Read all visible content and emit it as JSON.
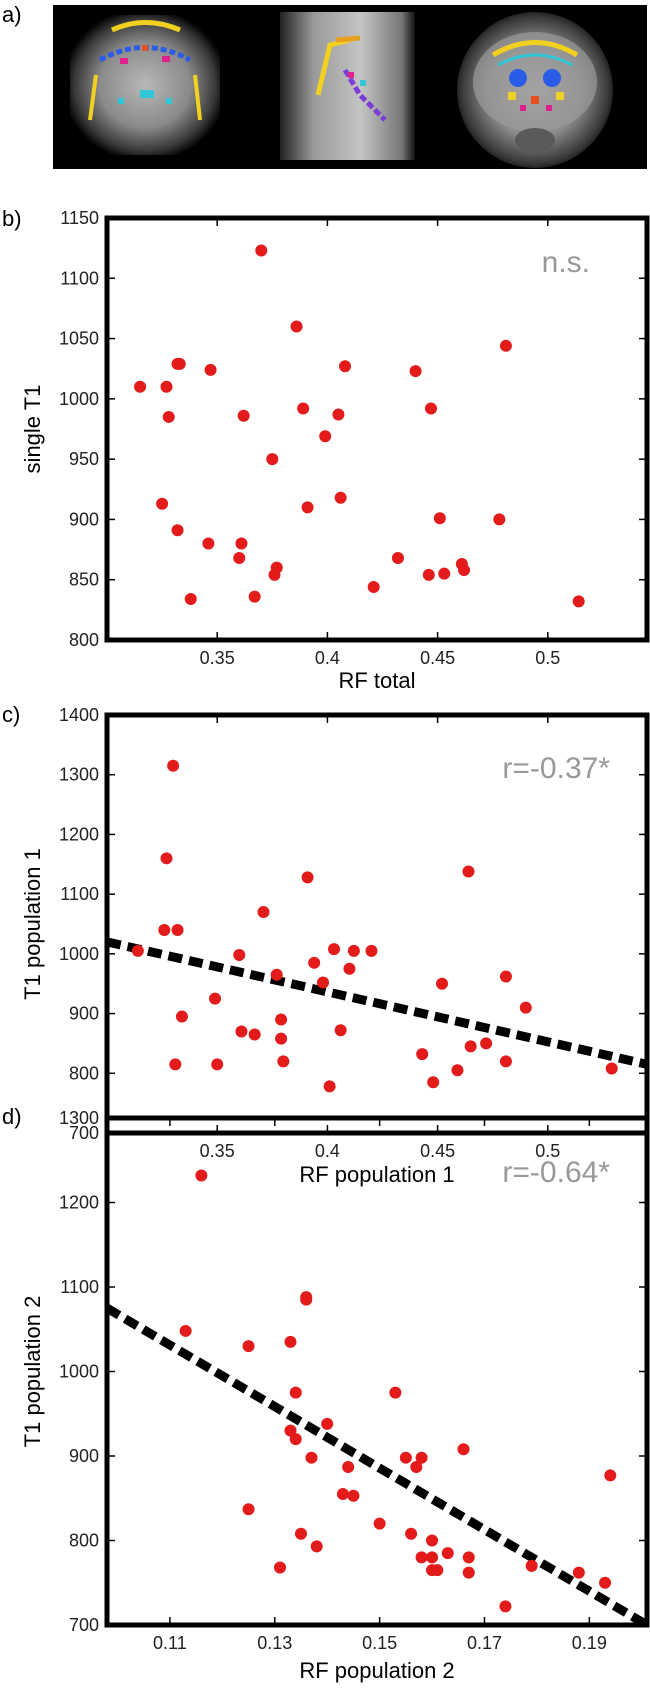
{
  "colors": {
    "point": "#e31b1b",
    "annotation": "#999999",
    "frame": "#000000",
    "fit_line": "#000000"
  },
  "panels": [
    {
      "label": "a)"
    },
    {
      "label": "b)"
    },
    {
      "label": "c)"
    },
    {
      "label": "d)"
    }
  ],
  "images": {
    "description_names": [
      "coronal-slice",
      "sagittal-slice",
      "axial-slice"
    ]
  },
  "chart_data": [
    {
      "type": "scatter",
      "xlabel": "RF total",
      "ylabel": "single T1",
      "annotation": "n.s.",
      "xlim": [
        0.3,
        0.545
      ],
      "ylim": [
        800,
        1150
      ],
      "xticks": [
        0.35,
        0.4,
        0.45,
        0.5
      ],
      "xtick_labels": [
        "0.35",
        "0.4",
        "0.45",
        "0.5"
      ],
      "yticks": [
        800,
        850,
        900,
        950,
        1000,
        1050,
        1100,
        1150
      ],
      "ytick_labels": [
        "800",
        "850",
        "900",
        "950",
        "1000",
        "1050",
        "1100",
        "1150"
      ],
      "fit": null,
      "x": [
        0.315,
        0.325,
        0.327,
        0.328,
        0.332,
        0.333,
        0.332,
        0.338,
        0.346,
        0.347,
        0.36,
        0.361,
        0.362,
        0.367,
        0.37,
        0.375,
        0.376,
        0.377,
        0.386,
        0.389,
        0.391,
        0.399,
        0.405,
        0.406,
        0.408,
        0.421,
        0.432,
        0.44,
        0.446,
        0.447,
        0.451,
        0.453,
        0.461,
        0.462,
        0.478,
        0.481,
        0.514
      ],
      "y": [
        1010,
        913,
        1010,
        985,
        1029,
        1029,
        891,
        834,
        880,
        1024,
        868,
        880,
        986,
        836,
        1123,
        950,
        854,
        860,
        1060,
        992,
        910,
        969,
        987,
        918,
        1027,
        844,
        868,
        1023,
        854,
        992,
        901,
        855,
        863,
        858,
        900,
        1044,
        832
      ]
    },
    {
      "type": "scatter",
      "xlabel": "RF population 1",
      "ylabel": "T1 population 1",
      "annotation": "r=-0.37*",
      "xlim": [
        0.3,
        0.545
      ],
      "ylim": [
        700,
        1400
      ],
      "xticks": [
        0.35,
        0.4,
        0.45,
        0.5
      ],
      "xtick_labels": [
        "0.35",
        "0.4",
        "0.45",
        "0.5"
      ],
      "yticks": [
        700,
        800,
        900,
        1000,
        1100,
        1200,
        1300,
        1400
      ],
      "ytick_labels": [
        "700",
        "800",
        "900",
        "1000",
        "1100",
        "1200",
        "1300",
        "1400"
      ],
      "fit": {
        "x": [
          0.3,
          0.545
        ],
        "y": [
          1020,
          815
        ]
      },
      "x": [
        0.314,
        0.326,
        0.327,
        0.33,
        0.331,
        0.332,
        0.334,
        0.349,
        0.35,
        0.36,
        0.361,
        0.367,
        0.371,
        0.377,
        0.379,
        0.379,
        0.38,
        0.391,
        0.394,
        0.398,
        0.401,
        0.403,
        0.406,
        0.41,
        0.412,
        0.42,
        0.443,
        0.448,
        0.452,
        0.459,
        0.465,
        0.472,
        0.481,
        0.481,
        0.464,
        0.49,
        0.529
      ],
      "y": [
        1005,
        1040,
        1160,
        1315,
        815,
        1040,
        895,
        925,
        815,
        998,
        870,
        865,
        1070,
        965,
        890,
        858,
        820,
        1128,
        985,
        952,
        778,
        1008,
        872,
        975,
        1005,
        1005,
        832,
        785,
        950,
        805,
        845,
        850,
        962,
        820,
        1138,
        910,
        808
      ]
    },
    {
      "type": "scatter",
      "xlabel": "RF population 2",
      "ylabel": "T1 population 2",
      "annotation": "r=-0.64*",
      "xlim": [
        0.098,
        0.201
      ],
      "ylim": [
        700,
        1300
      ],
      "xticks": [
        0.11,
        0.13,
        0.15,
        0.17,
        0.19
      ],
      "xtick_labels": [
        "0.11",
        "0.13",
        "0.15",
        "0.17",
        "0.19"
      ],
      "yticks": [
        700,
        800,
        900,
        1000,
        1100,
        1200,
        1300
      ],
      "ytick_labels": [
        "700",
        "800",
        "900",
        "1000",
        "1100",
        "1200",
        "1300"
      ],
      "fit": {
        "x": [
          0.098,
          0.201
        ],
        "y": [
          1075,
          700
        ]
      },
      "x": [
        0.113,
        0.116,
        0.125,
        0.125,
        0.131,
        0.133,
        0.133,
        0.134,
        0.134,
        0.135,
        0.136,
        0.136,
        0.137,
        0.138,
        0.14,
        0.143,
        0.144,
        0.145,
        0.15,
        0.153,
        0.155,
        0.156,
        0.157,
        0.158,
        0.158,
        0.16,
        0.16,
        0.16,
        0.161,
        0.163,
        0.166,
        0.167,
        0.167,
        0.174,
        0.179,
        0.188,
        0.193,
        0.194
      ],
      "y": [
        1048,
        1232,
        1030,
        837,
        768,
        1035,
        930,
        975,
        920,
        808,
        1085,
        1088,
        898,
        793,
        938,
        855,
        887,
        853,
        820,
        975,
        898,
        808,
        887,
        780,
        898,
        800,
        780,
        765,
        765,
        785,
        908,
        762,
        780,
        722,
        770,
        762,
        750,
        877
      ]
    }
  ]
}
